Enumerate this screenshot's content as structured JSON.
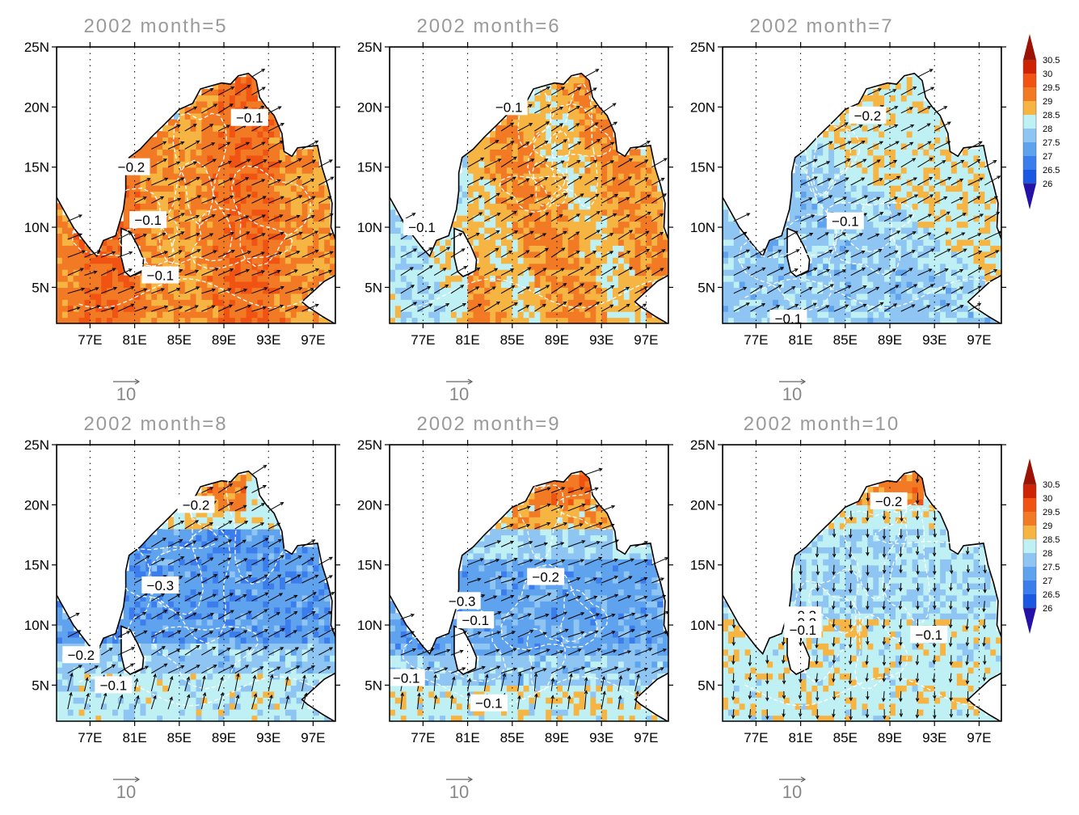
{
  "panels": [
    {
      "title": "2002  month=5",
      "labels": [
        {
          "text": "−0.1",
          "x": 91.3,
          "y": 19.1
        },
        {
          "text": "−0.2",
          "x": 80.7,
          "y": 15.0
        },
        {
          "text": "−0.1",
          "x": 82.2,
          "y": 10.6
        },
        {
          "text": "−0.1",
          "x": 83.3,
          "y": 6.0
        }
      ]
    },
    {
      "title": "2002  month=6",
      "labels": [
        {
          "text": "−0.1",
          "x": 84.7,
          "y": 20.0
        },
        {
          "text": "−0.1",
          "x": 76.9,
          "y": 10.0
        }
      ]
    },
    {
      "title": "2002  month=7",
      "labels": [
        {
          "text": "−0.2",
          "x": 87.0,
          "y": 19.3
        },
        {
          "text": "−0.1",
          "x": 85.0,
          "y": 10.5
        },
        {
          "text": "−0.1",
          "x": 79.9,
          "y": 2.4
        }
      ]
    },
    {
      "title": "2002  month=8",
      "labels": [
        {
          "text": "−0.2",
          "x": 86.5,
          "y": 20.0
        },
        {
          "text": "−0.3",
          "x": 83.3,
          "y": 13.3
        },
        {
          "text": "−0.2",
          "x": 76.2,
          "y": 7.5
        },
        {
          "text": "−0.1",
          "x": 79.1,
          "y": 5.0
        }
      ]
    },
    {
      "title": "2002  month=9",
      "labels": [
        {
          "text": "−0.2",
          "x": 88.0,
          "y": 14.0
        },
        {
          "text": "−0.3",
          "x": 80.5,
          "y": 12.0
        },
        {
          "text": "−0.1",
          "x": 81.7,
          "y": 10.4
        },
        {
          "text": "−0.1",
          "x": 75.5,
          "y": 5.6
        },
        {
          "text": "−0.1",
          "x": 82.9,
          "y": 3.5
        }
      ]
    },
    {
      "title": "2002  month=10",
      "labels": [
        {
          "text": "−0.2",
          "x": 88.9,
          "y": 20.3
        },
        {
          "text": "−0.3",
          "x": 81.2,
          "y": 10.8
        },
        {
          "text": "−0.2",
          "x": 81.2,
          "y": 10.2
        },
        {
          "text": "−0.1",
          "x": 81.2,
          "y": 9.6
        },
        {
          "text": "−0.1",
          "x": 92.5,
          "y": 9.2
        }
      ]
    }
  ],
  "axes": {
    "lon_ticks": [
      {
        "value": 77,
        "label": "77E"
      },
      {
        "value": 81,
        "label": "81E"
      },
      {
        "value": 85,
        "label": "85E"
      },
      {
        "value": 89,
        "label": "89E"
      },
      {
        "value": 93,
        "label": "93E"
      },
      {
        "value": 97,
        "label": "97E"
      }
    ],
    "lat_ticks": [
      {
        "value": 5,
        "label": "5N"
      },
      {
        "value": 10,
        "label": "10N"
      },
      {
        "value": 15,
        "label": "15N"
      },
      {
        "value": 20,
        "label": "20N"
      },
      {
        "value": 25,
        "label": "25N"
      }
    ],
    "lon_range": [
      74,
      99
    ],
    "lat_range": [
      2,
      25
    ]
  },
  "vector_ref": {
    "value": "10"
  },
  "colorbar": {
    "labels": [
      "30.5",
      "30",
      "29.5",
      "29",
      "28.5",
      "28",
      "27.5",
      "27",
      "26.5",
      "26"
    ],
    "colors": [
      "#9c1205",
      "#cf2404",
      "#f05312",
      "#f27a24",
      "#f6b443",
      "#bff0f3",
      "#8ec5f2",
      "#5fa3ee",
      "#3c7ded",
      "#1c57e3",
      "#2510a8"
    ],
    "min_color": "#2510a8",
    "max_color": "#9c1205"
  },
  "colors": {
    "land": "#ffffff",
    "coast": "#000000",
    "contour": "#ffffff",
    "arrow": "#000000",
    "title": "#9a9a9a"
  }
}
